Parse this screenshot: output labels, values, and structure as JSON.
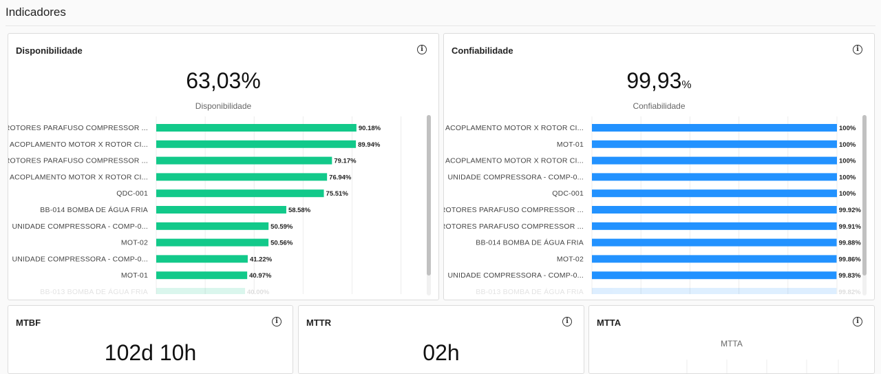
{
  "page": {
    "title": "Indicadores"
  },
  "colors": {
    "availability_bar": "#12c98a",
    "reliability_bar": "#2292ff",
    "grid": "#ececec"
  },
  "icons": {
    "info": "info-circle-icon"
  },
  "availability": {
    "title": "Disponibilidade",
    "value": "63,03%",
    "value_label": "Disponibilidade",
    "chart_data": {
      "type": "bar",
      "orientation": "horizontal",
      "title": "",
      "xlim": [
        0,
        100
      ],
      "grid": true,
      "categories": [
        "ROTORES PARAFUSO COMPRESSOR ...",
        "ACOPLAMENTO MOTOR X ROTOR CI...",
        "ROTORES PARAFUSO COMPRESSOR ...",
        "ACOPLAMENTO MOTOR X ROTOR CI...",
        "QDC-001",
        "BB-014 BOMBA DE ÁGUA FRIA",
        "UNIDADE COMPRESSORA - COMP-0...",
        "MOT-02",
        "UNIDADE COMPRESSORA - COMP-0...",
        "MOT-01",
        "BB-013 BOMBA DE ÁGUA FRIA"
      ],
      "values": [
        90.18,
        89.94,
        79.17,
        76.94,
        75.51,
        58.58,
        50.59,
        50.56,
        41.22,
        40.97,
        40.0
      ],
      "value_labels": [
        "90.18%",
        "89.94%",
        "79.17%",
        "76.94%",
        "75.51%",
        "58.58%",
        "50.59%",
        "50.56%",
        "41.22%",
        "40.97%",
        "40.00%"
      ]
    }
  },
  "reliability": {
    "title": "Confiabilidade",
    "value_number": "99,93",
    "value_unit": "%",
    "value_label": "Confiabilidade",
    "chart_data": {
      "type": "bar",
      "orientation": "horizontal",
      "title": "",
      "xlim": [
        0,
        100
      ],
      "grid": true,
      "categories": [
        "ACOPLAMENTO MOTOR X ROTOR CI...",
        "MOT-01",
        "ACOPLAMENTO MOTOR X ROTOR CI...",
        "UNIDADE COMPRESSORA - COMP-0...",
        "QDC-001",
        "ROTORES PARAFUSO COMPRESSOR ...",
        "ROTORES PARAFUSO COMPRESSOR ...",
        "BB-014 BOMBA DE ÁGUA FRIA",
        "MOT-02",
        "UNIDADE COMPRESSORA - COMP-0...",
        "BB-013 BOMBA DE ÁGUA FRIA"
      ],
      "values": [
        100,
        100,
        100,
        100,
        100,
        99.92,
        99.91,
        99.88,
        99.86,
        99.83,
        99.82
      ],
      "value_labels": [
        "100%",
        "100%",
        "100%",
        "100%",
        "100%",
        "99.92%",
        "99.91%",
        "99.88%",
        "99.86%",
        "99.83%",
        "99.82%"
      ]
    }
  },
  "mtbf": {
    "title": "MTBF",
    "value": "102d 10h"
  },
  "mttr": {
    "title": "MTTR",
    "value": "02h"
  },
  "mtta": {
    "title": "MTTA",
    "chart_title": "MTTA"
  }
}
